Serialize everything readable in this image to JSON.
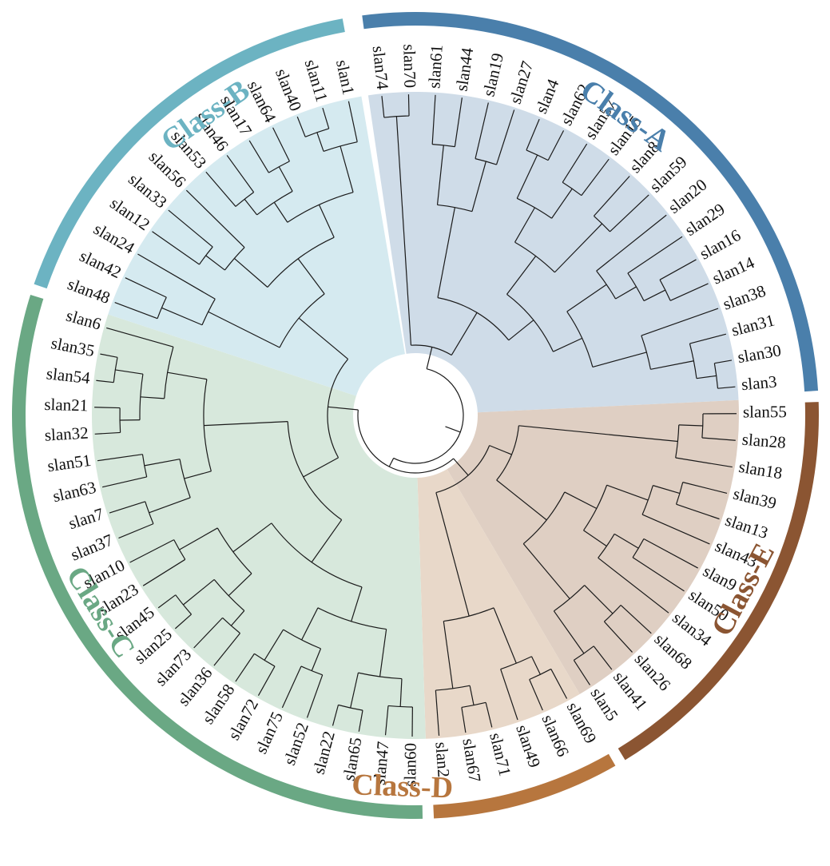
{
  "tree": {
    "leaves": [
      "slan74",
      "slan70",
      "slan61",
      "slan44",
      "slan19",
      "slan27",
      "slan4",
      "slan62",
      "slan57",
      "slan15",
      "slan8",
      "slan59",
      "slan20",
      "slan29",
      "slan16",
      "slan14",
      "slan38",
      "slan31",
      "slan30",
      "slan3",
      "slan55",
      "slan28",
      "slan18",
      "slan39",
      "slan13",
      "slan43",
      "slan9",
      "slan50",
      "slan34",
      "slan68",
      "slan26",
      "slan41",
      "slan5",
      "slan69",
      "slan66",
      "slan49",
      "slan71",
      "slan67",
      "slan2",
      "slan60",
      "slan47",
      "slan65",
      "slan22",
      "slan52",
      "slan75",
      "slan72",
      "slan58",
      "slan36",
      "slan73",
      "slan25",
      "slan45",
      "slan23",
      "slan10",
      "slan37",
      "slan7",
      "slan63",
      "slan51",
      "slan32",
      "slan21",
      "slan54",
      "slan35",
      "slan6",
      "slan48",
      "slan42",
      "slan24",
      "slan12",
      "slan33",
      "slan56",
      "slan53",
      "slan46",
      "slan17",
      "slan64",
      "slan40",
      "slan11",
      "slan1"
    ]
  },
  "classes": [
    {
      "label": "Class-A",
      "color": "#4a7fab",
      "sector": "#cfdce8",
      "first": 0,
      "last": 19
    },
    {
      "label": "Class-E",
      "color": "#8b5532",
      "sector": "#dfcfc3",
      "first": 20,
      "last": 32
    },
    {
      "label": "Class-D",
      "color": "#b7763e",
      "sector": "#e8d8c9",
      "first": 33,
      "last": 38
    },
    {
      "label": "Class-C",
      "color": "#6aa884",
      "sector": "#d7e8dc",
      "first": 39,
      "last": 61
    },
    {
      "label": "Class-B",
      "color": "#6cb3c2",
      "sector": "#d5eaf0",
      "first": 62,
      "last": 74
    }
  ]
}
